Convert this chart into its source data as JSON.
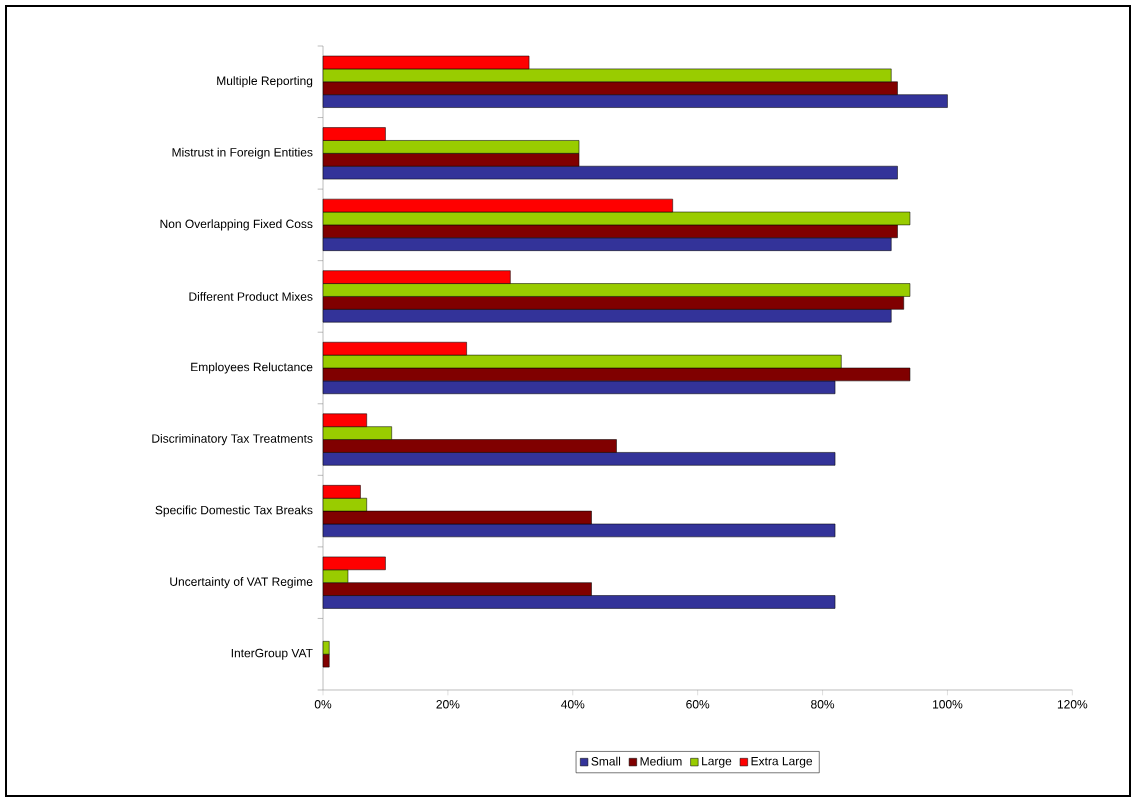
{
  "chart_data": {
    "type": "bar",
    "orientation": "horizontal",
    "categories": [
      "Multiple Reporting",
      "Mistrust in Foreign Entities",
      "Non Overlapping Fixed Coss",
      "Different Product Mixes",
      "Employees Reluctance",
      "Discriminatory Tax Treatments",
      "Specific Domestic Tax Breaks",
      "Uncertainty of VAT Regime",
      "InterGroup VAT"
    ],
    "series": [
      {
        "name": "Small",
        "color": "#333399",
        "values": [
          100,
          92,
          91,
          91,
          82,
          82,
          82,
          82,
          0
        ]
      },
      {
        "name": "Medium",
        "color": "#800000",
        "values": [
          92,
          41,
          92,
          93,
          94,
          47,
          43,
          43,
          1
        ]
      },
      {
        "name": "Large",
        "color": "#99cc00",
        "values": [
          91,
          41,
          94,
          94,
          83,
          11,
          7,
          4,
          1
        ]
      },
      {
        "name": "Extra Large",
        "color": "#ff0000",
        "values": [
          33,
          10,
          56,
          30,
          23,
          7,
          6,
          10,
          0
        ]
      }
    ],
    "xlim": [
      0,
      120
    ],
    "xticks": [
      {
        "value": 0,
        "label": "0%"
      },
      {
        "value": 20,
        "label": "20%"
      },
      {
        "value": 40,
        "label": "40%"
      },
      {
        "value": 60,
        "label": "60%"
      },
      {
        "value": 80,
        "label": "80%"
      },
      {
        "value": 100,
        "label": "100%"
      },
      {
        "value": 120,
        "label": "120%"
      }
    ],
    "legend": "bottom"
  }
}
